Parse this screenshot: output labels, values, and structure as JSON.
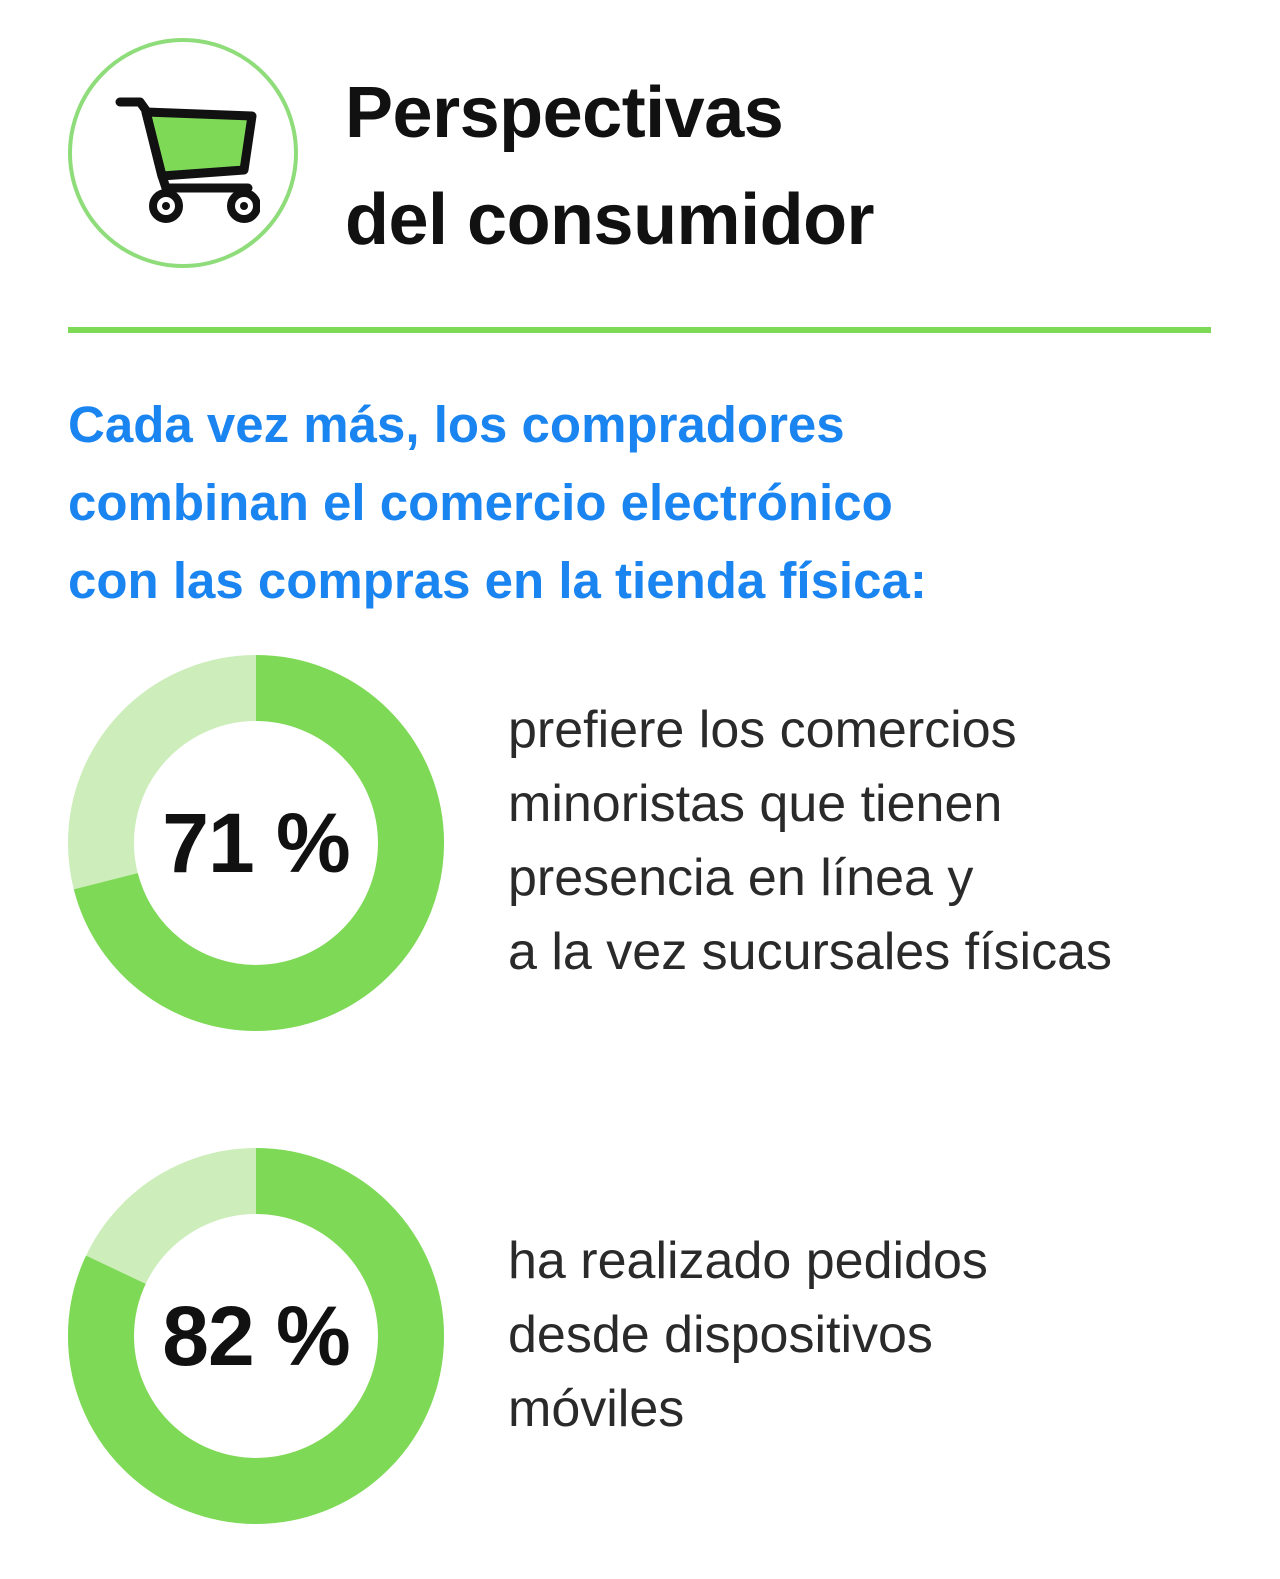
{
  "header": {
    "icon": "shopping-cart-icon",
    "title_lines": [
      "Perspectivas",
      "del consumidor"
    ]
  },
  "intro": {
    "lines": [
      "Cada vez más, los compradores",
      "combinan el comercio electrónico",
      "con las compras en la tienda física:"
    ]
  },
  "colors": {
    "accent_green": "#7ed957",
    "light_green": "#cdeebb",
    "divider_green": "#7ed957",
    "headline_blue": "#1a84f0",
    "text_dark": "#111111"
  },
  "chart_data": [
    {
      "type": "pie",
      "value": 71,
      "max": 100,
      "label": "71 %",
      "description_lines": [
        "prefiere los comercios",
        "minoristas que tienen",
        "presencia en línea y",
        "a la vez sucursales físicas"
      ]
    },
    {
      "type": "pie",
      "value": 82,
      "max": 100,
      "label": "82 %",
      "description_lines": [
        "ha realizado pedidos",
        "desde dispositivos",
        "móviles"
      ]
    }
  ]
}
